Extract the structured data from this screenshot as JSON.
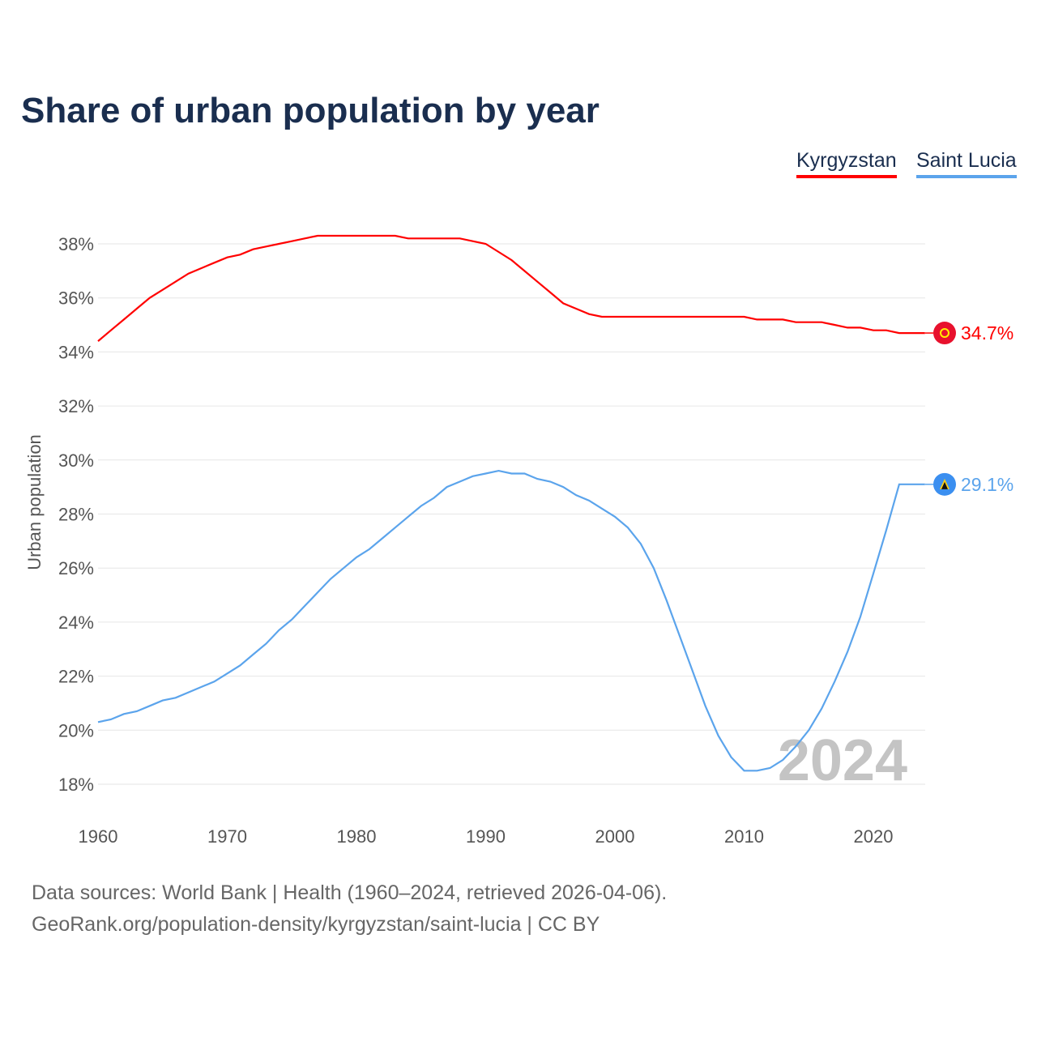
{
  "chart_data": {
    "type": "line",
    "title": "Share of urban population by year",
    "ylabel": "Urban population",
    "xlabel": "",
    "xlim": [
      1960,
      2024
    ],
    "ylim": [
      18,
      38
    ],
    "xticks": [
      "1960",
      "1970",
      "1980",
      "1990",
      "2000",
      "2010",
      "2020"
    ],
    "yticks": [
      "18%",
      "20%",
      "22%",
      "24%",
      "26%",
      "28%",
      "30%",
      "32%",
      "34%",
      "36%",
      "38%"
    ],
    "grid": true,
    "legend_placement": "top-right",
    "watermark_year": "2024",
    "x": [
      1960,
      1961,
      1962,
      1963,
      1964,
      1965,
      1966,
      1967,
      1968,
      1969,
      1970,
      1971,
      1972,
      1973,
      1974,
      1975,
      1976,
      1977,
      1978,
      1979,
      1980,
      1981,
      1982,
      1983,
      1984,
      1985,
      1986,
      1987,
      1988,
      1989,
      1990,
      1991,
      1992,
      1993,
      1994,
      1995,
      1996,
      1997,
      1998,
      1999,
      2000,
      2001,
      2002,
      2003,
      2004,
      2005,
      2006,
      2007,
      2008,
      2009,
      2010,
      2011,
      2012,
      2013,
      2014,
      2015,
      2016,
      2017,
      2018,
      2019,
      2020,
      2021,
      2022,
      2023,
      2024
    ],
    "series": [
      {
        "name": "Kyrgyzstan",
        "color": "#ff0000",
        "end_label": "34.7%",
        "values": [
          34.4,
          34.8,
          35.2,
          35.6,
          36.0,
          36.3,
          36.6,
          36.9,
          37.1,
          37.3,
          37.5,
          37.6,
          37.8,
          37.9,
          38.0,
          38.1,
          38.2,
          38.3,
          38.3,
          38.3,
          38.3,
          38.3,
          38.3,
          38.3,
          38.2,
          38.2,
          38.2,
          38.2,
          38.2,
          38.1,
          38.0,
          37.7,
          37.4,
          37.0,
          36.6,
          36.2,
          35.8,
          35.6,
          35.4,
          35.3,
          35.3,
          35.3,
          35.3,
          35.3,
          35.3,
          35.3,
          35.3,
          35.3,
          35.3,
          35.3,
          35.3,
          35.2,
          35.2,
          35.2,
          35.1,
          35.1,
          35.1,
          35.0,
          34.9,
          34.9,
          34.8,
          34.8,
          34.7,
          34.7,
          34.7
        ]
      },
      {
        "name": "Saint Lucia",
        "color": "#5ba4ec",
        "end_label": "29.1%",
        "values": [
          20.3,
          20.4,
          20.6,
          20.7,
          20.9,
          21.1,
          21.2,
          21.4,
          21.6,
          21.8,
          22.1,
          22.4,
          22.8,
          23.2,
          23.7,
          24.1,
          24.6,
          25.1,
          25.6,
          26.0,
          26.4,
          26.7,
          27.1,
          27.5,
          27.9,
          28.3,
          28.6,
          29.0,
          29.2,
          29.4,
          29.5,
          29.6,
          29.5,
          29.5,
          29.3,
          29.2,
          29.0,
          28.7,
          28.5,
          28.2,
          27.9,
          27.5,
          26.9,
          26.0,
          24.8,
          23.5,
          22.2,
          20.9,
          19.8,
          19.0,
          18.5,
          18.5,
          18.6,
          18.9,
          19.4,
          20.0,
          20.8,
          21.8,
          22.9,
          24.2,
          25.8,
          27.4,
          29.1,
          29.1,
          29.1
        ]
      }
    ]
  },
  "footer": {
    "line1": "Data sources: World Bank | Health (1960–2024, retrieved 2026-04-06).",
    "line2": "GeoRank.org/population-density/kyrgyzstan/saint-lucia | CC BY"
  }
}
